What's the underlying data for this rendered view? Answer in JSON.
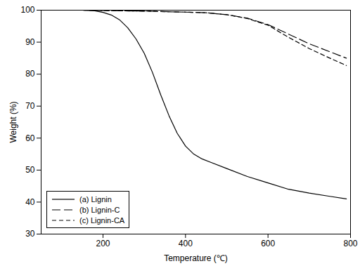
{
  "chart_data": {
    "type": "line",
    "x_label": "Temperature (℃)",
    "y_label": "Weight (%)",
    "xlim": [
      50,
      800
    ],
    "xticks": [
      200,
      400,
      600,
      800
    ],
    "ylim": [
      30,
      100
    ],
    "yticks": [
      30,
      40,
      50,
      60,
      70,
      80,
      90,
      100
    ],
    "grid": false,
    "legend": "lower left",
    "series": [
      {
        "name": "(a) Lignin",
        "color": "#000000",
        "line_style": "solid",
        "x": [
          50,
          150,
          180,
          200,
          220,
          240,
          260,
          280,
          300,
          320,
          340,
          360,
          380,
          400,
          420,
          440,
          460,
          500,
          550,
          600,
          650,
          700,
          750,
          790
        ],
        "values": [
          100,
          100,
          99.8,
          99.3,
          98.5,
          97,
          94.5,
          91,
          86.5,
          80.5,
          73.5,
          67,
          61.5,
          57.5,
          55,
          53.5,
          52.5,
          50.5,
          48,
          46,
          44,
          42.8,
          41.8,
          41
        ]
      },
      {
        "name": "(b) Lignin-C",
        "color": "#000000",
        "line_style": "longdash",
        "x": [
          50,
          150,
          200,
          300,
          400,
          450,
          500,
          550,
          600,
          650,
          700,
          750,
          790
        ],
        "values": [
          100,
          100,
          99.9,
          99.7,
          99.4,
          99.2,
          98.6,
          97.5,
          95.5,
          92.5,
          89.5,
          87,
          85
        ]
      },
      {
        "name": "(c) Lignin-CA",
        "color": "#000000",
        "line_style": "dash",
        "x": [
          50,
          150,
          200,
          300,
          400,
          450,
          500,
          550,
          600,
          650,
          700,
          750,
          790
        ],
        "values": [
          100,
          100,
          99.9,
          99.7,
          99.4,
          99.2,
          98.6,
          97.4,
          95.3,
          91.5,
          88,
          85,
          82.7
        ]
      }
    ]
  }
}
